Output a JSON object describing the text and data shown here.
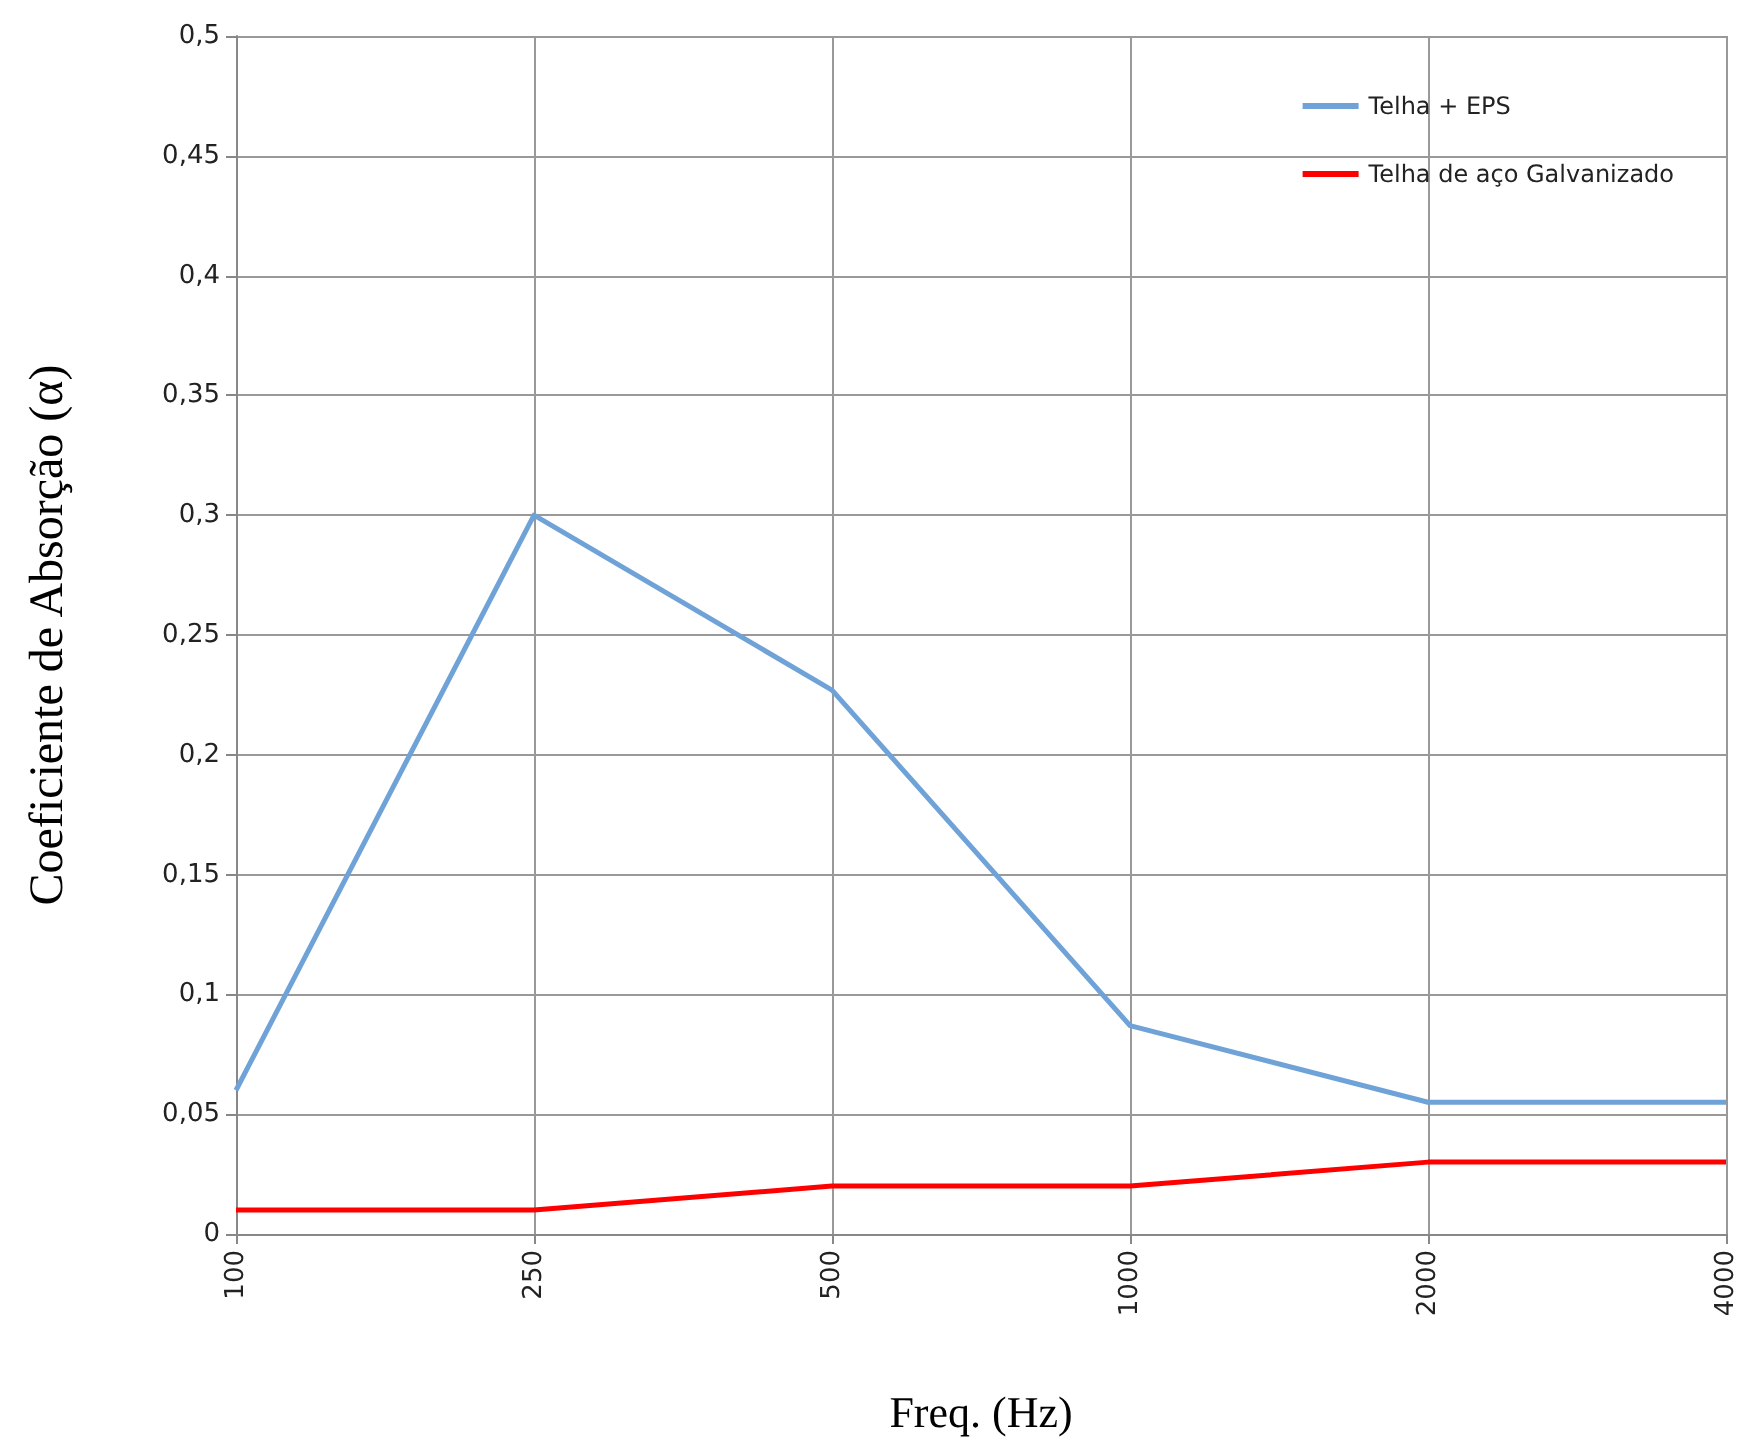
{
  "chart_data": {
    "type": "line",
    "xlabel": "Freq. (Hz)",
    "ylabel": "Coeficiente de Absorção (α)",
    "categories": [
      "100",
      "250",
      "500",
      "1000",
      "2000",
      "4000"
    ],
    "series": [
      {
        "name": "Telha + EPS",
        "color": "#6fa3d8",
        "values": [
          0.06,
          0.3,
          0.227,
          0.087,
          0.055,
          0.055
        ]
      },
      {
        "name": "Telha de aço Galvanizado",
        "color": "#ff0000",
        "values": [
          0.01,
          0.01,
          0.02,
          0.02,
          0.03,
          0.03
        ]
      }
    ],
    "ylim": [
      0,
      0.5
    ],
    "yticks": [
      {
        "value": 0,
        "label": "0"
      },
      {
        "value": 0.05,
        "label": "0,05"
      },
      {
        "value": 0.1,
        "label": "0,1"
      },
      {
        "value": 0.15,
        "label": "0,15"
      },
      {
        "value": 0.2,
        "label": "0,2"
      },
      {
        "value": 0.25,
        "label": "0,25"
      },
      {
        "value": 0.3,
        "label": "0,3"
      },
      {
        "value": 0.35,
        "label": "0,35"
      },
      {
        "value": 0.4,
        "label": "0,4"
      },
      {
        "value": 0.45,
        "label": "0,45"
      },
      {
        "value": 0.5,
        "label": "0,5"
      }
    ],
    "grid": true,
    "legend": "top right",
    "marker": "none",
    "line_style": "solid"
  }
}
